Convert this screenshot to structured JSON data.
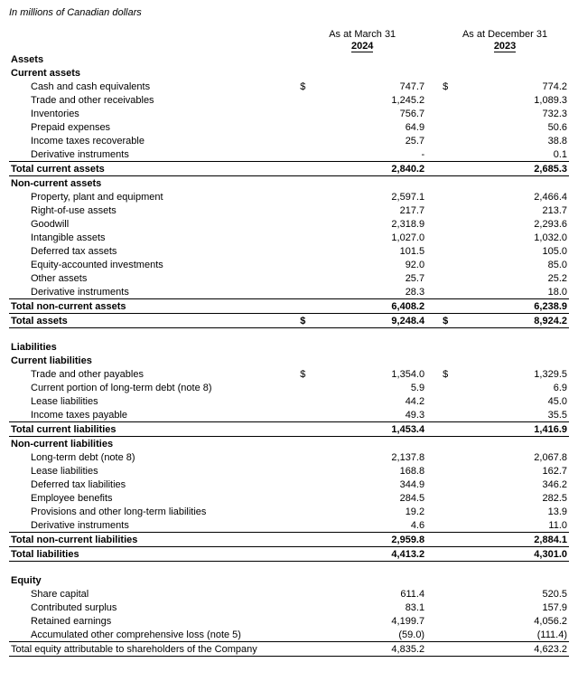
{
  "subtitle": "In millions of Canadian dollars",
  "headers": {
    "period1": "As at March 31",
    "period2": "As at December 31",
    "year1": "2024",
    "year2": "2023"
  },
  "currency": "$",
  "sections": {
    "assets": "Assets",
    "current_assets": "Current assets",
    "ca": {
      "cash": {
        "label": "Cash and cash equivalents",
        "v1": "747.7",
        "v2": "774.2"
      },
      "trade": {
        "label": "Trade and other receivables",
        "v1": "1,245.2",
        "v2": "1,089.3"
      },
      "inv": {
        "label": "Inventories",
        "v1": "756.7",
        "v2": "732.3"
      },
      "prepaid": {
        "label": "Prepaid expenses",
        "v1": "64.9",
        "v2": "50.6"
      },
      "tax": {
        "label": "Income taxes recoverable",
        "v1": "25.7",
        "v2": "38.8"
      },
      "deriv": {
        "label": "Derivative instruments",
        "v1": "-",
        "v2": "0.1"
      }
    },
    "total_ca": {
      "label": "Total current assets",
      "v1": "2,840.2",
      "v2": "2,685.3"
    },
    "non_current_assets": "Non-current assets",
    "nca": {
      "ppe": {
        "label": "Property, plant and equipment",
        "v1": "2,597.1",
        "v2": "2,466.4"
      },
      "rou": {
        "label": "Right-of-use assets",
        "v1": "217.7",
        "v2": "213.7"
      },
      "gw": {
        "label": "Goodwill",
        "v1": "2,318.9",
        "v2": "2,293.6"
      },
      "intan": {
        "label": "Intangible assets",
        "v1": "1,027.0",
        "v2": "1,032.0"
      },
      "dta": {
        "label": "Deferred tax assets",
        "v1": "101.5",
        "v2": "105.0"
      },
      "eqinv": {
        "label": "Equity-accounted investments",
        "v1": "92.0",
        "v2": "85.0"
      },
      "other": {
        "label": "Other assets",
        "v1": "25.7",
        "v2": "25.2"
      },
      "deriv": {
        "label": "Derivative instruments",
        "v1": "28.3",
        "v2": "18.0"
      }
    },
    "total_nca": {
      "label": "Total non-current assets",
      "v1": "6,408.2",
      "v2": "6,238.9"
    },
    "total_assets": {
      "label": "Total assets",
      "v1": "9,248.4",
      "v2": "8,924.2"
    },
    "liabilities": "Liabilities",
    "current_liabilities": "Current liabilities",
    "cl": {
      "trade": {
        "label": "Trade and other payables",
        "v1": "1,354.0",
        "v2": "1,329.5"
      },
      "ltd": {
        "label": "Current portion of long-term debt (note 8)",
        "v1": "5.9",
        "v2": "6.9"
      },
      "lease": {
        "label": "Lease liabilities",
        "v1": "44.2",
        "v2": "45.0"
      },
      "tax": {
        "label": "Income taxes payable",
        "v1": "49.3",
        "v2": "35.5"
      }
    },
    "total_cl": {
      "label": "Total current liabilities",
      "v1": "1,453.4",
      "v2": "1,416.9"
    },
    "non_current_liabilities": "Non-current liabilities",
    "ncl": {
      "ltd": {
        "label": "Long-term debt (note 8)",
        "v1": "2,137.8",
        "v2": "2,067.8"
      },
      "lease": {
        "label": "Lease liabilities",
        "v1": "168.8",
        "v2": "162.7"
      },
      "dtl": {
        "label": "Deferred tax liabilities",
        "v1": "344.9",
        "v2": "346.2"
      },
      "emp": {
        "label": "Employee benefits",
        "v1": "284.5",
        "v2": "282.5"
      },
      "prov": {
        "label": "Provisions and other long-term liabilities",
        "v1": "19.2",
        "v2": "13.9"
      },
      "deriv": {
        "label": "Derivative instruments",
        "v1": "4.6",
        "v2": "11.0"
      }
    },
    "total_ncl": {
      "label": "Total non-current liabilities",
      "v1": "2,959.8",
      "v2": "2,884.1"
    },
    "total_liab": {
      "label": "Total liabilities",
      "v1": "4,413.2",
      "v2": "4,301.0"
    },
    "equity": "Equity",
    "eq": {
      "share": {
        "label": "Share capital",
        "v1": "611.4",
        "v2": "520.5"
      },
      "surp": {
        "label": "Contributed surplus",
        "v1": "83.1",
        "v2": "157.9"
      },
      "re": {
        "label": "Retained earnings",
        "v1": "4,199.7",
        "v2": "4,056.2"
      },
      "aoci": {
        "label": "Accumulated other comprehensive loss (note 5)",
        "v1": "(59.0)",
        "v2": "(111.4)"
      }
    },
    "total_eq": {
      "label": "Total equity attributable to shareholders of the Company",
      "v1": "4,835.2",
      "v2": "4,623.2"
    }
  }
}
